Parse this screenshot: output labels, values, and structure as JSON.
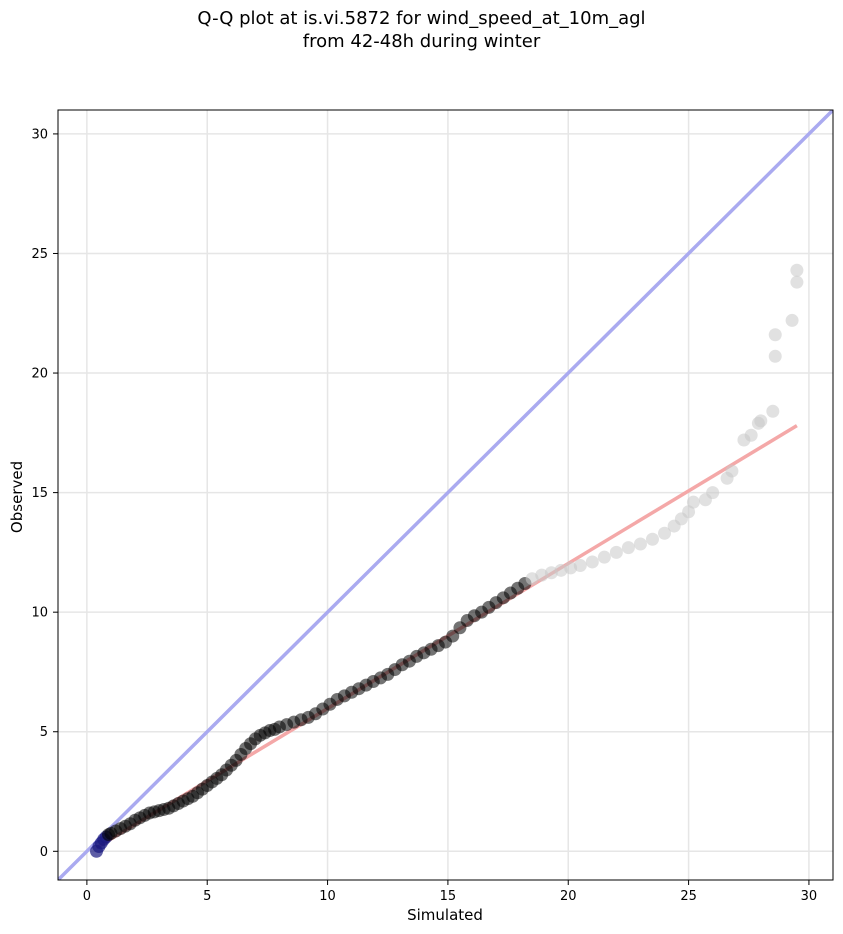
{
  "chart_data": {
    "type": "scatter",
    "title": "Q-Q plot at is.vi.5872 for wind_speed_at_10m_agl",
    "subtitle": "from 42-48h during winter",
    "xlabel": "Simulated",
    "ylabel": "Observed",
    "xlim": [
      -1.2,
      31.0
    ],
    "ylim": [
      -1.2,
      31.0
    ],
    "xticks": [
      0,
      5,
      10,
      15,
      20,
      25,
      30
    ],
    "yticks": [
      0,
      5,
      10,
      15,
      20,
      25,
      30
    ],
    "grid": true,
    "colors": {
      "identity_line": "#aaaaf0",
      "fit_line": "#f4a8a8",
      "points_dense": "#000000",
      "points_sparse": "#c8c8c8",
      "points_lowest": "#1a1a80"
    },
    "reference_lines": [
      {
        "kind": "identity",
        "from": [
          -1.2,
          -1.2
        ],
        "to": [
          31.0,
          31.0
        ]
      },
      {
        "kind": "fit",
        "from": [
          0.4,
          0.15
        ],
        "to": [
          29.5,
          17.8
        ]
      }
    ],
    "points": [
      [
        0.4,
        0.0
      ],
      [
        0.5,
        0.2
      ],
      [
        0.6,
        0.35
      ],
      [
        0.7,
        0.5
      ],
      [
        0.8,
        0.6
      ],
      [
        0.9,
        0.7
      ],
      [
        1.0,
        0.75
      ],
      [
        1.2,
        0.85
      ],
      [
        1.4,
        0.95
      ],
      [
        1.6,
        1.05
      ],
      [
        1.8,
        1.15
      ],
      [
        2.0,
        1.3
      ],
      [
        2.2,
        1.4
      ],
      [
        2.4,
        1.5
      ],
      [
        2.6,
        1.6
      ],
      [
        2.8,
        1.65
      ],
      [
        3.0,
        1.7
      ],
      [
        3.2,
        1.75
      ],
      [
        3.4,
        1.8
      ],
      [
        3.6,
        1.9
      ],
      [
        3.8,
        2.0
      ],
      [
        4.0,
        2.1
      ],
      [
        4.2,
        2.2
      ],
      [
        4.4,
        2.3
      ],
      [
        4.6,
        2.45
      ],
      [
        4.8,
        2.6
      ],
      [
        5.0,
        2.75
      ],
      [
        5.2,
        2.9
      ],
      [
        5.4,
        3.05
      ],
      [
        5.6,
        3.2
      ],
      [
        5.8,
        3.4
      ],
      [
        6.0,
        3.6
      ],
      [
        6.2,
        3.8
      ],
      [
        6.4,
        4.05
      ],
      [
        6.6,
        4.3
      ],
      [
        6.8,
        4.5
      ],
      [
        7.0,
        4.7
      ],
      [
        7.2,
        4.85
      ],
      [
        7.4,
        4.95
      ],
      [
        7.6,
        5.05
      ],
      [
        7.8,
        5.1
      ],
      [
        8.0,
        5.2
      ],
      [
        8.3,
        5.3
      ],
      [
        8.6,
        5.4
      ],
      [
        8.9,
        5.5
      ],
      [
        9.2,
        5.6
      ],
      [
        9.5,
        5.75
      ],
      [
        9.8,
        5.95
      ],
      [
        10.1,
        6.15
      ],
      [
        10.4,
        6.35
      ],
      [
        10.7,
        6.5
      ],
      [
        11.0,
        6.65
      ],
      [
        11.3,
        6.8
      ],
      [
        11.6,
        6.95
      ],
      [
        11.9,
        7.1
      ],
      [
        12.2,
        7.25
      ],
      [
        12.5,
        7.4
      ],
      [
        12.8,
        7.6
      ],
      [
        13.1,
        7.8
      ],
      [
        13.4,
        7.95
      ],
      [
        13.7,
        8.15
      ],
      [
        14.0,
        8.3
      ],
      [
        14.3,
        8.45
      ],
      [
        14.6,
        8.6
      ],
      [
        14.9,
        8.75
      ],
      [
        15.2,
        9.0
      ],
      [
        15.5,
        9.35
      ],
      [
        15.8,
        9.65
      ],
      [
        16.1,
        9.85
      ],
      [
        16.4,
        10.0
      ],
      [
        16.7,
        10.2
      ],
      [
        17.0,
        10.4
      ],
      [
        17.3,
        10.6
      ],
      [
        17.6,
        10.8
      ],
      [
        17.9,
        11.0
      ],
      [
        18.2,
        11.2
      ],
      [
        18.5,
        11.4
      ],
      [
        18.9,
        11.55
      ],
      [
        19.3,
        11.65
      ],
      [
        19.7,
        11.75
      ],
      [
        20.1,
        11.85
      ],
      [
        20.5,
        11.95
      ],
      [
        21.0,
        12.1
      ],
      [
        21.5,
        12.3
      ],
      [
        22.0,
        12.5
      ],
      [
        22.5,
        12.7
      ],
      [
        23.0,
        12.85
      ],
      [
        23.5,
        13.05
      ],
      [
        24.0,
        13.3
      ],
      [
        24.4,
        13.6
      ],
      [
        24.7,
        13.9
      ],
      [
        25.0,
        14.2
      ],
      [
        25.2,
        14.6
      ],
      [
        25.7,
        14.7
      ],
      [
        26.0,
        15.0
      ],
      [
        26.6,
        15.6
      ],
      [
        26.8,
        15.9
      ],
      [
        27.3,
        17.2
      ],
      [
        27.6,
        17.4
      ],
      [
        27.9,
        17.9
      ],
      [
        28.0,
        18.0
      ],
      [
        28.5,
        18.4
      ],
      [
        28.6,
        20.7
      ],
      [
        28.6,
        21.6
      ],
      [
        29.3,
        22.2
      ],
      [
        29.5,
        23.8
      ],
      [
        29.5,
        24.3
      ]
    ]
  }
}
